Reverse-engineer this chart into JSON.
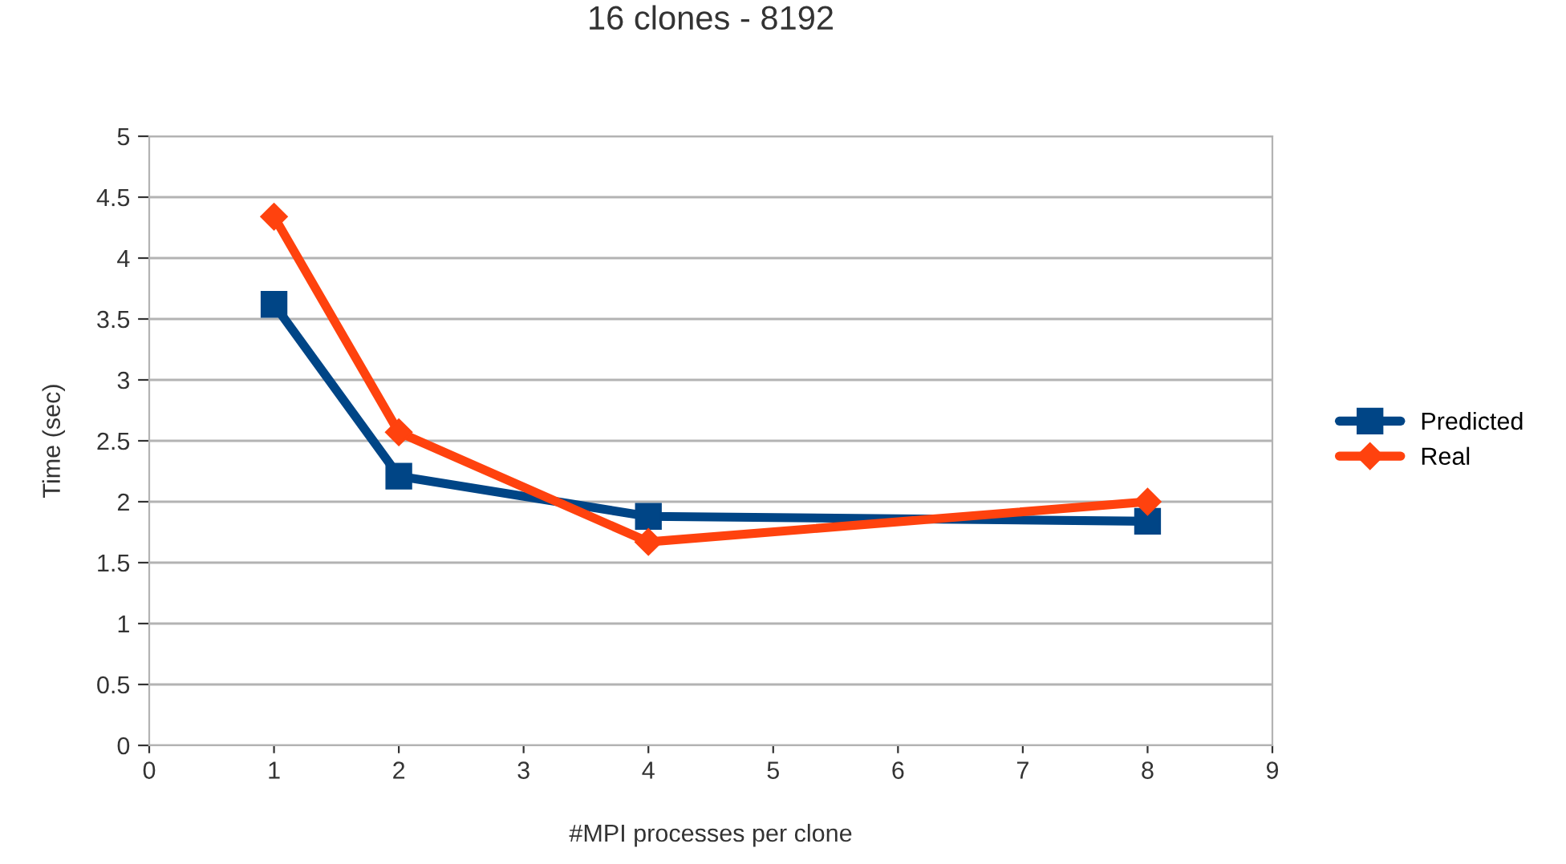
{
  "chart_data": {
    "type": "line",
    "title": "16 clones - 8192",
    "xlabel": "#MPI processes per clone",
    "ylabel": "Time (sec)",
    "x": [
      1,
      2,
      4,
      8
    ],
    "series": [
      {
        "name": "Predicted",
        "color": "#004586",
        "marker": "square",
        "values": [
          3.62,
          2.21,
          1.88,
          1.84
        ]
      },
      {
        "name": "Real",
        "color": "#ff420e",
        "marker": "diamond",
        "values": [
          4.34,
          2.57,
          1.67,
          2.0
        ]
      }
    ],
    "xlim": [
      0,
      9
    ],
    "xticks": [
      0,
      1,
      2,
      3,
      4,
      5,
      6,
      7,
      8,
      9
    ],
    "ylim": [
      0,
      5
    ],
    "yticks": [
      0,
      0.5,
      1,
      1.5,
      2,
      2.5,
      3,
      3.5,
      4,
      4.5,
      5
    ],
    "grid": "y",
    "legend": "right",
    "line_style": "solid"
  }
}
